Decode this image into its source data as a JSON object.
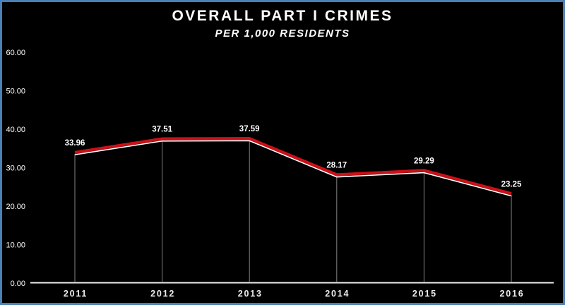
{
  "colors": {
    "background": "#000000",
    "border": "#4a80b6",
    "text": "#ffffff",
    "axis": "#f0f0f0",
    "drop_line": "#9a9a9a"
  },
  "chart_data": {
    "type": "line",
    "title": "OVERALL PART I CRIMES",
    "subtitle": "PER 1,000 RESIDENTS",
    "categories": [
      "2011",
      "2012",
      "2013",
      "2014",
      "2015",
      "2016"
    ],
    "values": [
      33.96,
      37.51,
      37.59,
      28.17,
      29.29,
      23.25
    ],
    "value_labels": [
      "33.96",
      "37.51",
      "37.59",
      "28.17",
      "29.29",
      "23.25"
    ],
    "ytick_labels": [
      "0.00",
      "10.00",
      "20.00",
      "30.00",
      "40.00",
      "50.00",
      "60.00"
    ],
    "ylim": [
      0,
      60
    ],
    "xlabel": "",
    "ylabel": "",
    "grid": "off",
    "legend": "none",
    "series_style": {
      "line_color": "#cb1017",
      "shadow_color": "#ffffff",
      "line_width": 4.2,
      "shadow_width": 1.6,
      "drop_lines": true
    }
  }
}
